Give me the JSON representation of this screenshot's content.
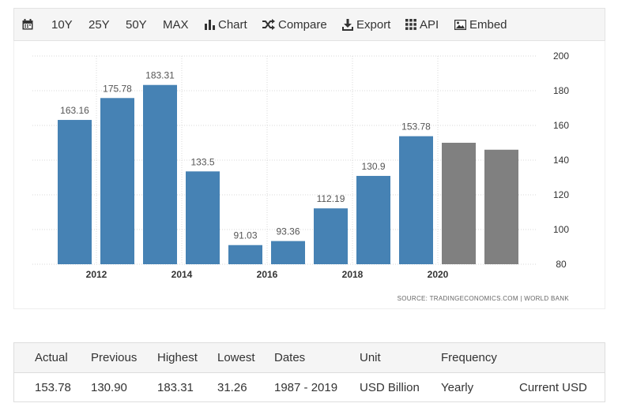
{
  "toolbar": {
    "items": [
      {
        "label": "",
        "icon": "calendar-icon"
      },
      {
        "label": "10Y",
        "icon": ""
      },
      {
        "label": "25Y",
        "icon": ""
      },
      {
        "label": "50Y",
        "icon": ""
      },
      {
        "label": "MAX",
        "icon": ""
      },
      {
        "label": "Chart",
        "icon": "bar-chart-icon"
      },
      {
        "label": "Compare",
        "icon": "shuffle-icon"
      },
      {
        "label": "Export",
        "icon": "download-icon"
      },
      {
        "label": "API",
        "icon": "grid-icon"
      },
      {
        "label": "Embed",
        "icon": "image-icon"
      }
    ]
  },
  "chart_data": {
    "type": "bar",
    "x": [
      2011,
      2012,
      2013,
      2014,
      2015,
      2016,
      2017,
      2018,
      2019,
      2020,
      2021
    ],
    "values": [
      163.16,
      175.78,
      183.31,
      133.5,
      91.03,
      93.36,
      112.19,
      130.9,
      153.78,
      150,
      146
    ],
    "labels": [
      "163.16",
      "175.78",
      "183.31",
      "133.5",
      "91.03",
      "93.36",
      "112.19",
      "130.9",
      "153.78",
      "",
      ""
    ],
    "forecast": [
      false,
      false,
      false,
      false,
      false,
      false,
      false,
      false,
      false,
      true,
      true
    ],
    "xtick_labels": [
      {
        "x": 2012,
        "label": "2012"
      },
      {
        "x": 2014,
        "label": "2014"
      },
      {
        "x": 2016,
        "label": "2016"
      },
      {
        "x": 2018,
        "label": "2018"
      },
      {
        "x": 2020,
        "label": "2020"
      }
    ],
    "yticks": [
      80,
      100,
      120,
      140,
      160,
      180,
      200
    ],
    "ylim": [
      80,
      200
    ],
    "y_axis_side": "right",
    "grid": true,
    "colors": {
      "actual": "#4682b4",
      "forecast": "#808080"
    },
    "source": "SOURCE: TRADINGECONOMICS.COM  |  WORLD BANK"
  },
  "stats": {
    "headers": [
      "Actual",
      "Previous",
      "Highest",
      "Lowest",
      "Dates",
      "Unit",
      "Frequency"
    ],
    "values": [
      "153.78",
      "130.90",
      "183.31",
      "31.26",
      "1987 - 2019",
      "USD Billion",
      "Yearly",
      "Current USD"
    ]
  }
}
